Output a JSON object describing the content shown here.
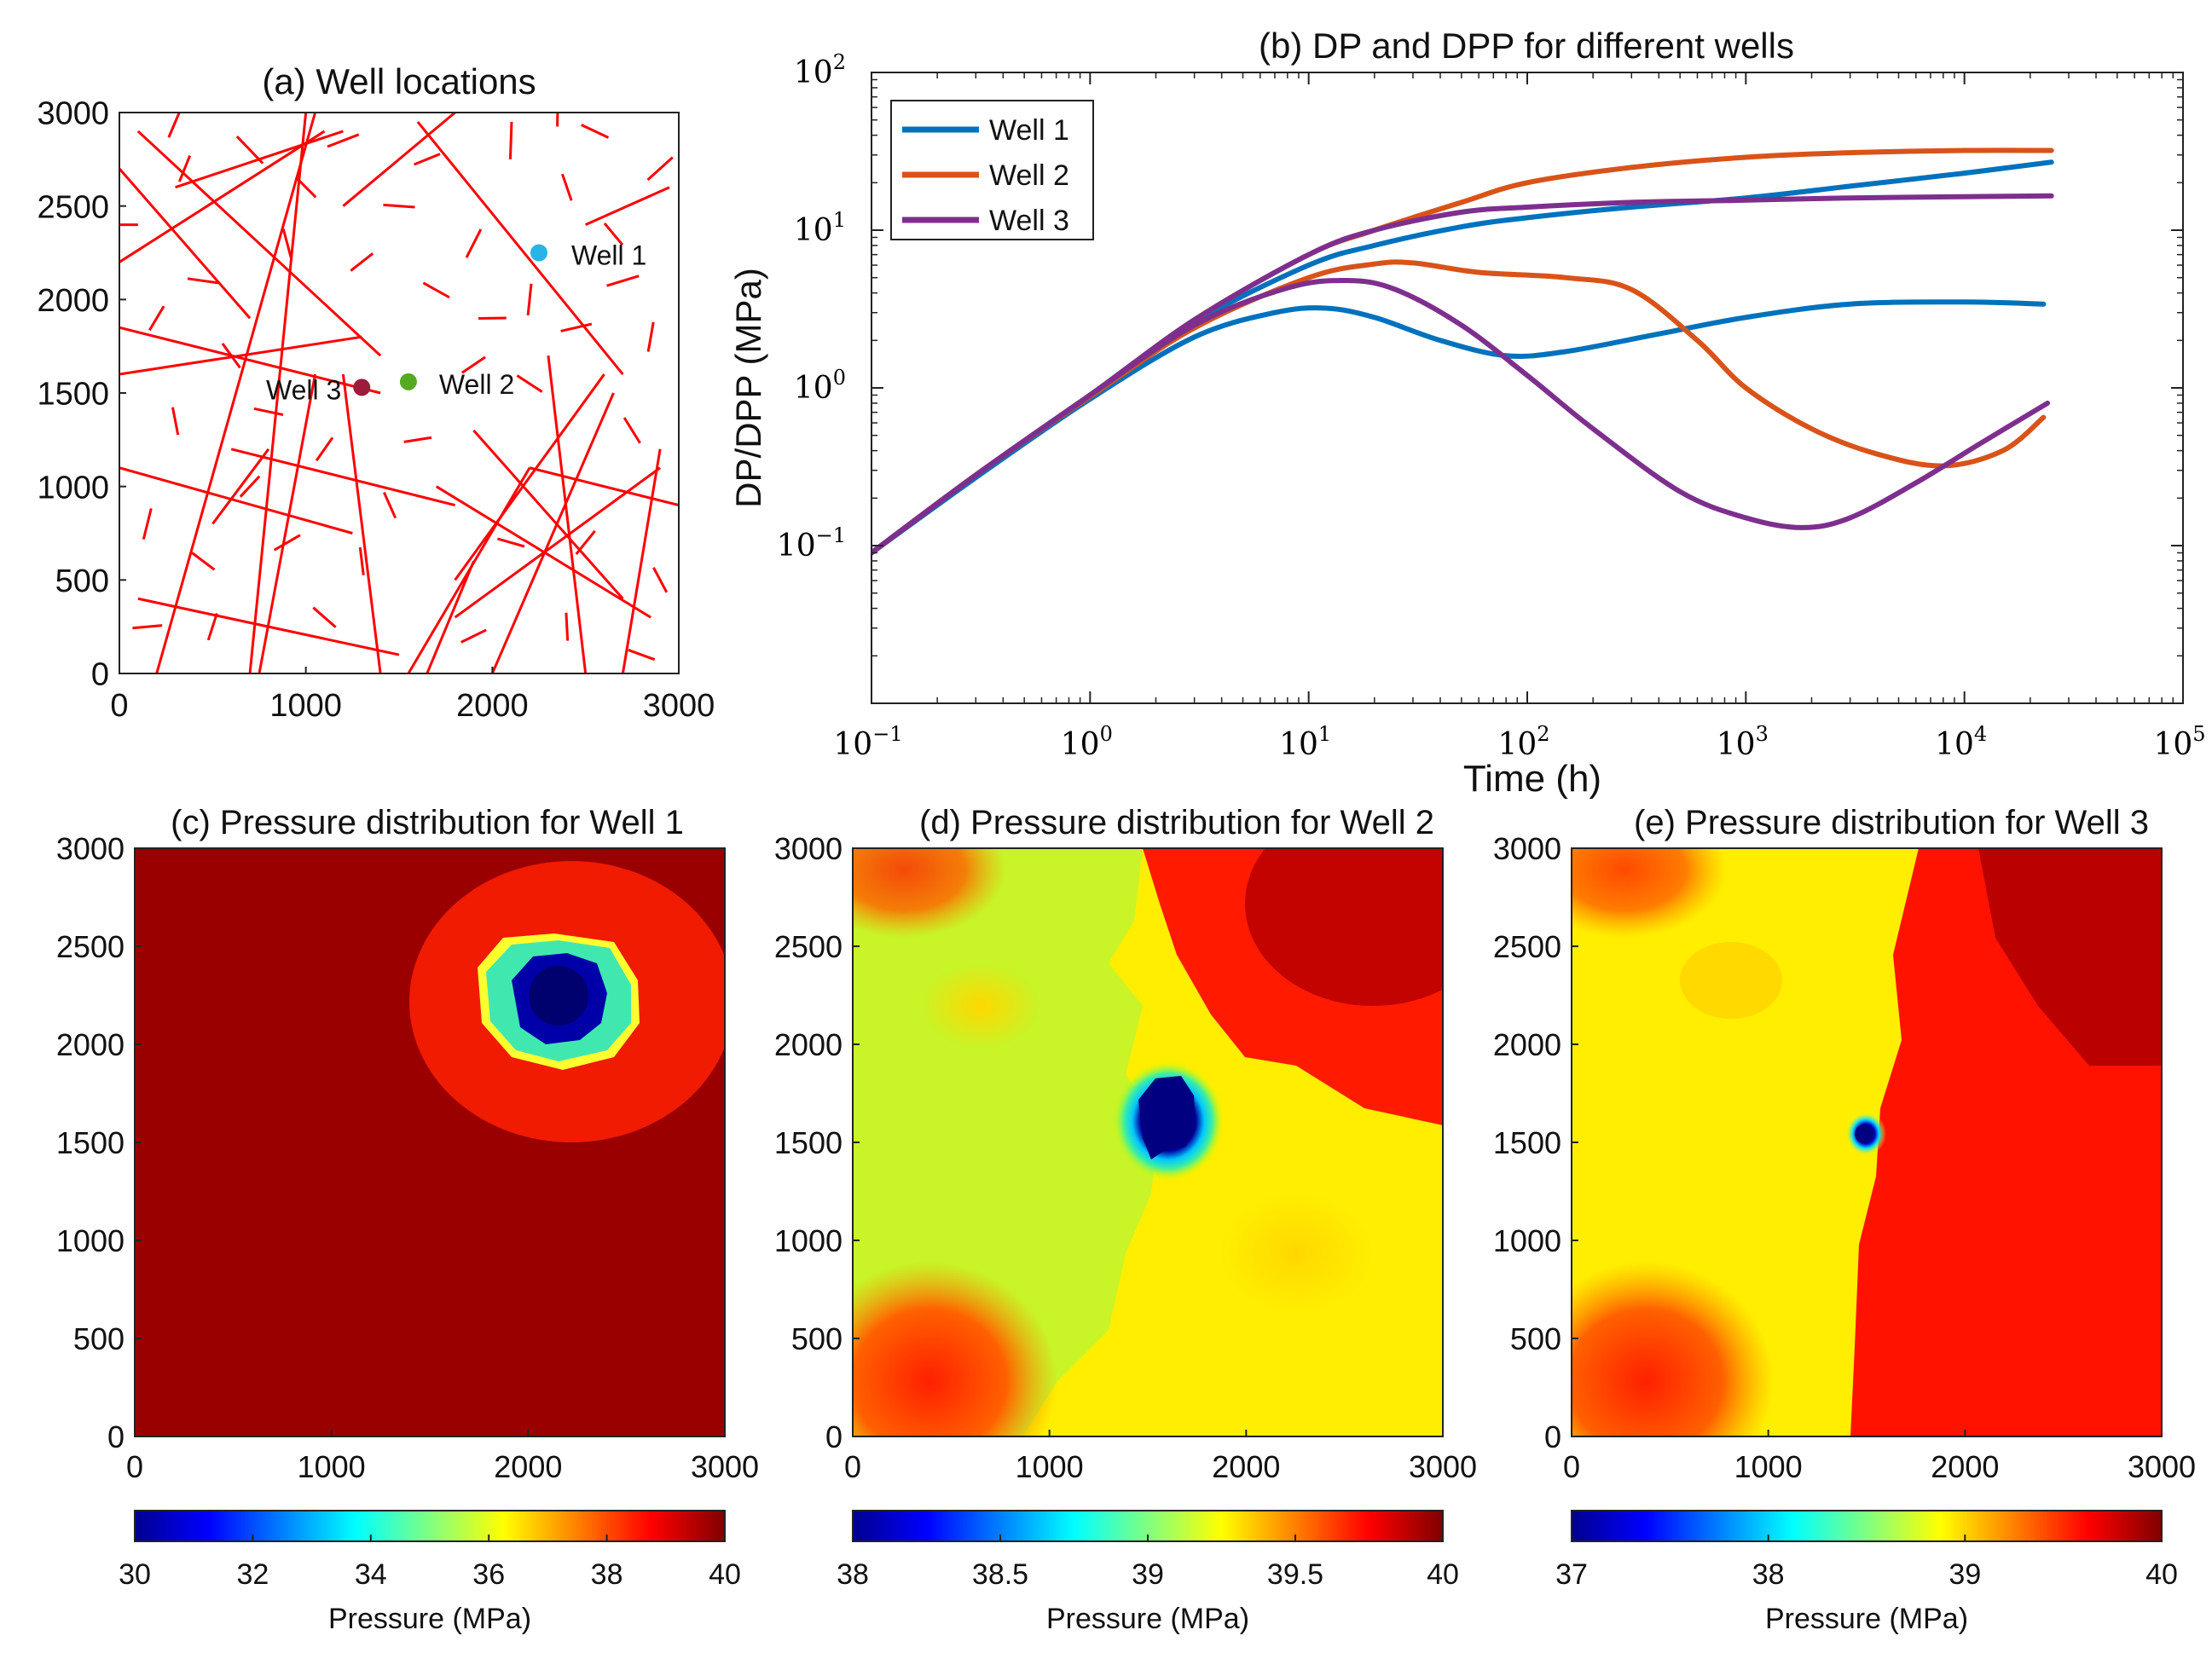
{
  "chart_data": [
    {
      "id": "a",
      "type": "scatter",
      "title": "(a) Well locations",
      "xlim": [
        0,
        3000
      ],
      "ylim": [
        0,
        3000
      ],
      "xticks": [
        "0",
        "1000",
        "2000",
        "3000"
      ],
      "yticks": [
        "0",
        "500",
        "1000",
        "1500",
        "2000",
        "2500",
        "3000"
      ],
      "fracture_color": "#ff0000",
      "wells": [
        {
          "name": "Well 1",
          "x": 2250,
          "y": 2250,
          "color": "#2ab3e6"
        },
        {
          "name": "Well 2",
          "x": 1550,
          "y": 1560,
          "color": "#55aa22"
        },
        {
          "name": "Well 3",
          "x": 1300,
          "y": 1530,
          "color": "#9e1b3c"
        }
      ],
      "long_fractures": [
        [
          0,
          1850,
          1400,
          1500
        ],
        [
          0,
          1600,
          1300,
          1800
        ],
        [
          100,
          2900,
          1400,
          1700
        ],
        [
          0,
          2200,
          1100,
          2900
        ],
        [
          200,
          0,
          1050,
          3000
        ],
        [
          1600,
          2950,
          2700,
          1600
        ],
        [
          1200,
          2500,
          1800,
          3000
        ],
        [
          700,
          0,
          1000,
          3000
        ],
        [
          1050,
          1600,
          750,
          0
        ],
        [
          1200,
          1600,
          1400,
          0
        ],
        [
          0,
          1100,
          1250,
          750
        ],
        [
          100,
          400,
          1500,
          100
        ],
        [
          600,
          1200,
          1800,
          900
        ],
        [
          1700,
          1000,
          2850,
          300
        ],
        [
          1800,
          300,
          2900,
          1100
        ],
        [
          1900,
          1300,
          2700,
          400
        ],
        [
          1550,
          0,
          2200,
          1100
        ],
        [
          2200,
          1100,
          3000,
          900
        ],
        [
          2600,
          1600,
          1800,
          500
        ],
        [
          2300,
          1700,
          2500,
          0
        ],
        [
          2650,
          1500,
          2000,
          0
        ],
        [
          2900,
          1200,
          2700,
          0
        ],
        [
          0,
          2700,
          700,
          1900
        ],
        [
          500,
          800,
          800,
          1200
        ],
        [
          1650,
          0,
          1900,
          600
        ],
        [
          300,
          2600,
          1200,
          2900
        ],
        [
          2500,
          2400,
          2950,
          2600
        ]
      ],
      "short_fractures": [
        [
          0,
          2400,
          200
        ],
        [
          300,
          2950,
          180
        ],
        [
          700,
          2800,
          200
        ],
        [
          1200,
          2850,
          180
        ],
        [
          2100,
          2850,
          200
        ],
        [
          2550,
          2900,
          160
        ],
        [
          2900,
          2700,
          180
        ],
        [
          2400,
          2600,
          150
        ],
        [
          1500,
          2500,
          170
        ],
        [
          1900,
          2300,
          170
        ],
        [
          2650,
          2350,
          150
        ],
        [
          2700,
          2100,
          180
        ],
        [
          2200,
          2000,
          170
        ],
        [
          1700,
          2050,
          160
        ],
        [
          1300,
          2200,
          150
        ],
        [
          900,
          2300,
          160
        ],
        [
          450,
          2100,
          170
        ],
        [
          200,
          1900,
          150
        ],
        [
          600,
          1700,
          160
        ],
        [
          2450,
          1850,
          170
        ],
        [
          2850,
          1800,
          160
        ],
        [
          2200,
          1550,
          160
        ],
        [
          1900,
          1650,
          150
        ],
        [
          300,
          1350,
          150
        ],
        [
          800,
          1400,
          160
        ],
        [
          1100,
          1200,
          150
        ],
        [
          2750,
          1300,
          160
        ],
        [
          1600,
          1250,
          150
        ],
        [
          150,
          800,
          170
        ],
        [
          450,
          600,
          150
        ],
        [
          900,
          700,
          160
        ],
        [
          1300,
          600,
          150
        ],
        [
          2100,
          700,
          150
        ],
        [
          2500,
          700,
          160
        ],
        [
          2900,
          500,
          150
        ],
        [
          150,
          250,
          160
        ],
        [
          500,
          250,
          150
        ],
        [
          1100,
          300,
          160
        ],
        [
          1900,
          200,
          150
        ],
        [
          2400,
          250,
          150
        ],
        [
          2800,
          100,
          150
        ],
        [
          700,
          1000,
          150
        ],
        [
          1450,
          900,
          150
        ],
        [
          2000,
          1900,
          150
        ],
        [
          350,
          2700,
          150
        ],
        [
          1000,
          2600,
          150
        ],
        [
          1650,
          2750,
          150
        ],
        [
          2350,
          3000,
          150
        ]
      ]
    },
    {
      "id": "b",
      "type": "line",
      "title": "(b) DP and DPP for different wells",
      "xlabel": "Time (h)",
      "ylabel": "DP/DPP (MPa)",
      "xscale": "log",
      "yscale": "log",
      "xlim": [
        0.1,
        100000
      ],
      "ylim": [
        0.01,
        100
      ],
      "xtick_base": [
        "10",
        "10",
        "10",
        "10",
        "10",
        "10",
        "10"
      ],
      "xtick_exp": [
        "−1",
        "0",
        "1",
        "2",
        "3",
        "4",
        "5"
      ],
      "ytick_base": [
        "10",
        "10",
        "10",
        "10"
      ],
      "ytick_exp": [
        "−1",
        "0",
        "1",
        "2"
      ],
      "ytick_values": [
        0.1,
        1,
        10,
        100
      ],
      "xtick_values": [
        0.1,
        1,
        10,
        100,
        1000,
        10000,
        100000
      ],
      "legend_position": "top-left",
      "series": [
        {
          "name": "Well 1",
          "color": "#0072BD",
          "dp": [
            [
              0.1,
              0.09
            ],
            [
              0.3,
              0.28
            ],
            [
              1,
              0.9
            ],
            [
              3,
              2.6
            ],
            [
              10,
              6
            ],
            [
              20,
              8
            ],
            [
              50,
              10.5
            ],
            [
              100,
              12
            ],
            [
              300,
              14
            ],
            [
              1000,
              16
            ],
            [
              3000,
              19
            ],
            [
              10000,
              23
            ],
            [
              25000,
              27
            ]
          ],
          "dpp": [
            [
              0.1,
              0.09
            ],
            [
              0.3,
              0.27
            ],
            [
              1,
              0.85
            ],
            [
              3,
              2.1
            ],
            [
              7,
              3.0
            ],
            [
              12,
              3.2
            ],
            [
              20,
              2.8
            ],
            [
              40,
              2.0
            ],
            [
              80,
              1.6
            ],
            [
              150,
              1.7
            ],
            [
              400,
              2.2
            ],
            [
              1000,
              2.8
            ],
            [
              3000,
              3.4
            ],
            [
              10000,
              3.5
            ],
            [
              23000,
              3.4
            ]
          ]
        },
        {
          "name": "Well 2",
          "color": "#D95319",
          "dp": [
            [
              0.1,
              0.09
            ],
            [
              0.3,
              0.28
            ],
            [
              1,
              0.9
            ],
            [
              3,
              2.7
            ],
            [
              10,
              7
            ],
            [
              20,
              10
            ],
            [
              50,
              15
            ],
            [
              100,
              20
            ],
            [
              300,
              25
            ],
            [
              1000,
              29
            ],
            [
              3000,
              31
            ],
            [
              10000,
              32
            ],
            [
              25000,
              32
            ]
          ],
          "dpp": [
            [
              0.1,
              0.09
            ],
            [
              0.3,
              0.28
            ],
            [
              1,
              0.88
            ],
            [
              3,
              2.4
            ],
            [
              10,
              5
            ],
            [
              20,
              6.1
            ],
            [
              30,
              6.2
            ],
            [
              60,
              5.4
            ],
            [
              150,
              5.0
            ],
            [
              300,
              4.2
            ],
            [
              600,
              2.0
            ],
            [
              1000,
              1.0
            ],
            [
              2000,
              0.55
            ],
            [
              4000,
              0.38
            ],
            [
              8000,
              0.32
            ],
            [
              15000,
              0.4
            ],
            [
              23000,
              0.65
            ]
          ]
        },
        {
          "name": "Well 3",
          "color": "#7E2F8E",
          "dp": [
            [
              0.1,
              0.09
            ],
            [
              0.3,
              0.28
            ],
            [
              1,
              0.9
            ],
            [
              3,
              2.7
            ],
            [
              10,
              7
            ],
            [
              20,
              10
            ],
            [
              50,
              13
            ],
            [
              100,
              14
            ],
            [
              300,
              15
            ],
            [
              1000,
              15.5
            ],
            [
              3000,
              16
            ],
            [
              10000,
              16.3
            ],
            [
              25000,
              16.5
            ]
          ],
          "dpp": [
            [
              0.1,
              0.09
            ],
            [
              0.3,
              0.28
            ],
            [
              1,
              0.9
            ],
            [
              3,
              2.5
            ],
            [
              8,
              4.3
            ],
            [
              15,
              4.8
            ],
            [
              25,
              4.2
            ],
            [
              50,
              2.5
            ],
            [
              100,
              1.2
            ],
            [
              200,
              0.55
            ],
            [
              500,
              0.22
            ],
            [
              1000,
              0.15
            ],
            [
              1800,
              0.13
            ],
            [
              3000,
              0.15
            ],
            [
              6000,
              0.25
            ],
            [
              12000,
              0.45
            ],
            [
              24000,
              0.8
            ]
          ]
        }
      ]
    },
    {
      "id": "c",
      "type": "heatmap",
      "title": "(c) Pressure distribution for Well 1",
      "xlim": [
        0,
        3000
      ],
      "ylim": [
        0,
        3000
      ],
      "xticks": [
        "0",
        "1000",
        "2000",
        "3000"
      ],
      "yticks": [
        "0",
        "500",
        "1000",
        "1500",
        "2000",
        "2500",
        "3000"
      ],
      "colorbar_label": "Pressure (MPa)",
      "colorbar_ticks": [
        "30",
        "32",
        "34",
        "36",
        "38",
        "40"
      ],
      "crange": [
        30,
        40
      ],
      "well": {
        "x": 2200,
        "y": 2250
      }
    },
    {
      "id": "d",
      "type": "heatmap",
      "title": "(d) Pressure distribution for Well 2",
      "xlim": [
        0,
        3000
      ],
      "ylim": [
        0,
        3000
      ],
      "xticks": [
        "0",
        "1000",
        "2000",
        "3000"
      ],
      "yticks": [
        "0",
        "500",
        "1000",
        "1500",
        "2000",
        "2500",
        "3000"
      ],
      "colorbar_label": "Pressure (MPa)",
      "colorbar_ticks": [
        "38",
        "38.5",
        "39",
        "39.5",
        "40"
      ],
      "crange": [
        38,
        40
      ],
      "well": {
        "x": 1580,
        "y": 1600
      }
    },
    {
      "id": "e",
      "type": "heatmap",
      "title": "(e) Pressure distribution for Well 3",
      "xlim": [
        0,
        3000
      ],
      "ylim": [
        0,
        3000
      ],
      "xticks": [
        "0",
        "1000",
        "2000",
        "3000"
      ],
      "yticks": [
        "0",
        "500",
        "1000",
        "1500",
        "2000",
        "2500",
        "3000"
      ],
      "colorbar_label": "Pressure (MPa)",
      "colorbar_ticks": [
        "37",
        "38",
        "39",
        "40"
      ],
      "crange": [
        37,
        40
      ],
      "well": {
        "x": 1480,
        "y": 1530
      }
    }
  ]
}
